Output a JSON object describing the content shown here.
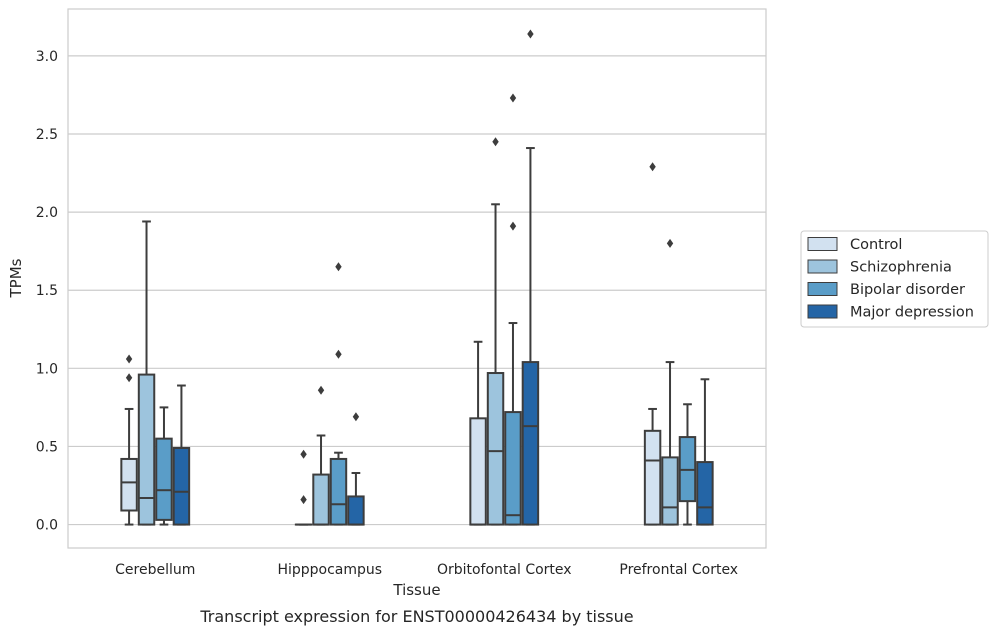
{
  "chart_data": {
    "type": "box",
    "title": "",
    "caption": "Transcript expression for ENST00000426434 by tissue",
    "xlabel": "Tissue",
    "ylabel": "TPMs",
    "ylim": [
      -0.15,
      3.3
    ],
    "yticks": [
      "0.0",
      "0.5",
      "1.0",
      "1.5",
      "2.0",
      "2.5",
      "3.0"
    ],
    "ytick_values": [
      0,
      0.5,
      1.0,
      1.5,
      2.0,
      2.5,
      3.0
    ],
    "grid": true,
    "legend_position": "right",
    "categories": [
      "Cerebellum",
      "Hipppocampus",
      "Orbitofontal Cortex",
      "Prefrontal Cortex"
    ],
    "series": [
      {
        "name": "Control",
        "color": "#d2e1f0",
        "boxes": [
          {
            "whislo": 0.0,
            "q1": 0.09,
            "med": 0.27,
            "q3": 0.42,
            "whishi": 0.74,
            "fliers": [
              0.94,
              1.06
            ]
          },
          {
            "whislo": 0.0,
            "q1": 0.0,
            "med": 0.0,
            "q3": 0.0,
            "whishi": 0.0,
            "fliers": [
              0.16,
              0.45
            ]
          },
          {
            "whislo": 0.0,
            "q1": 0.0,
            "med": 0.0,
            "q3": 0.68,
            "whishi": 1.17,
            "fliers": []
          },
          {
            "whislo": 0.0,
            "q1": 0.0,
            "med": 0.41,
            "q3": 0.6,
            "whishi": 0.74,
            "fliers": [
              2.29
            ]
          }
        ]
      },
      {
        "name": "Schizophrenia",
        "color": "#9dc4dd",
        "boxes": [
          {
            "whislo": 0.0,
            "q1": 0.0,
            "med": 0.17,
            "q3": 0.96,
            "whishi": 1.94,
            "fliers": []
          },
          {
            "whislo": 0.0,
            "q1": 0.0,
            "med": 0.0,
            "q3": 0.32,
            "whishi": 0.57,
            "fliers": [
              0.86
            ]
          },
          {
            "whislo": 0.0,
            "q1": 0.0,
            "med": 0.47,
            "q3": 0.97,
            "whishi": 2.05,
            "fliers": [
              2.45
            ]
          },
          {
            "whislo": 0.0,
            "q1": 0.0,
            "med": 0.11,
            "q3": 0.43,
            "whishi": 1.04,
            "fliers": [
              1.8
            ]
          }
        ]
      },
      {
        "name": "Bipolar disorder",
        "color": "#5a9dc8",
        "boxes": [
          {
            "whislo": 0.0,
            "q1": 0.03,
            "med": 0.22,
            "q3": 0.55,
            "whishi": 0.75,
            "fliers": []
          },
          {
            "whislo": 0.0,
            "q1": 0.0,
            "med": 0.13,
            "q3": 0.42,
            "whishi": 0.46,
            "fliers": [
              1.09,
              1.65
            ]
          },
          {
            "whislo": 0.0,
            "q1": 0.0,
            "med": 0.06,
            "q3": 0.72,
            "whishi": 1.29,
            "fliers": [
              1.91,
              2.73
            ]
          },
          {
            "whislo": 0.0,
            "q1": 0.15,
            "med": 0.35,
            "q3": 0.56,
            "whishi": 0.77,
            "fliers": []
          }
        ]
      },
      {
        "name": "Major depression",
        "color": "#2465a6",
        "boxes": [
          {
            "whislo": 0.0,
            "q1": 0.0,
            "med": 0.21,
            "q3": 0.49,
            "whishi": 0.89,
            "fliers": []
          },
          {
            "whislo": 0.0,
            "q1": 0.0,
            "med": 0.0,
            "q3": 0.18,
            "whishi": 0.33,
            "fliers": [
              0.69
            ]
          },
          {
            "whislo": 0.0,
            "q1": 0.0,
            "med": 0.63,
            "q3": 1.04,
            "whishi": 2.41,
            "fliers": [
              3.14
            ]
          },
          {
            "whislo": 0.0,
            "q1": 0.0,
            "med": 0.11,
            "q3": 0.4,
            "whishi": 0.93,
            "fliers": []
          }
        ]
      }
    ]
  }
}
